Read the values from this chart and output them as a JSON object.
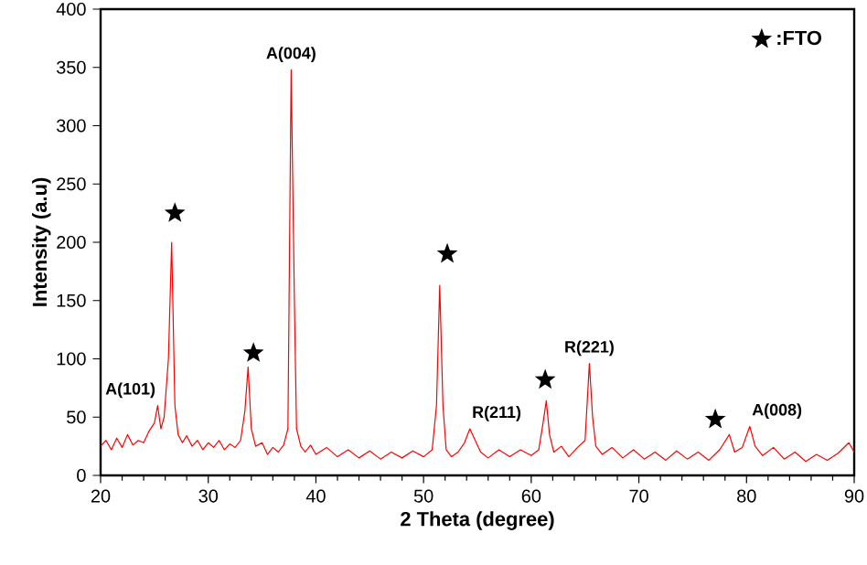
{
  "chart_data": {
    "type": "line",
    "xlabel": "2 Theta (degree)",
    "ylabel": "Intensity (a.u)",
    "xlim": [
      20,
      90
    ],
    "xticks": [
      20,
      30,
      40,
      50,
      60,
      70,
      80,
      90
    ],
    "ylim": [
      0,
      400
    ],
    "yticks": [
      0,
      50,
      100,
      150,
      200,
      250,
      300,
      350,
      400
    ],
    "legend": "top right",
    "grid": false,
    "series": [
      {
        "color": "#ff0000",
        "marker": "none",
        "x": [
          20,
          20.5,
          21,
          21.5,
          22,
          22.5,
          23,
          23.5,
          24,
          24.5,
          25,
          25.3,
          25.6,
          25.9,
          26.3,
          26.6,
          26.9,
          27.2,
          27.6,
          28,
          28.5,
          29,
          29.5,
          30,
          30.5,
          31,
          31.5,
          32,
          32.5,
          33,
          33.4,
          33.7,
          34,
          34.4,
          35,
          35.5,
          36,
          36.5,
          37,
          37.4,
          37.7,
          38,
          38.2,
          38.6,
          39,
          39.5,
          40,
          41,
          42,
          43,
          44,
          45,
          46,
          47,
          48,
          49,
          50,
          50.8,
          51.2,
          51.5,
          51.8,
          52.1,
          52.6,
          53.2,
          53.8,
          54.3,
          54.8,
          55.3,
          56,
          57,
          58,
          59,
          60,
          60.7,
          61.1,
          61.4,
          61.7,
          62.1,
          62.8,
          63.5,
          64.3,
          65,
          65.4,
          65.7,
          66,
          66.6,
          67.5,
          68.5,
          69.5,
          70.5,
          71.5,
          72.5,
          73.5,
          74.5,
          75.5,
          76.5,
          77.5,
          78.4,
          78.9,
          79.6,
          80.3,
          80.8,
          81.5,
          82.5,
          83.5,
          84.5,
          85.5,
          86.5,
          87.5,
          88.5,
          89.5,
          90
        ],
        "values": [
          25,
          30,
          22,
          32,
          24,
          35,
          26,
          30,
          28,
          38,
          45,
          60,
          40,
          50,
          100,
          200,
          60,
          35,
          28,
          34,
          25,
          30,
          22,
          28,
          24,
          30,
          22,
          27,
          24,
          30,
          55,
          93,
          40,
          25,
          28,
          18,
          24,
          20,
          26,
          40,
          348,
          150,
          40,
          25,
          20,
          26,
          18,
          24,
          16,
          22,
          15,
          21,
          14,
          20,
          15,
          21,
          16,
          22,
          60,
          163,
          60,
          22,
          16,
          20,
          28,
          40,
          30,
          20,
          15,
          22,
          16,
          22,
          17,
          22,
          45,
          64,
          35,
          20,
          25,
          16,
          24,
          30,
          96,
          50,
          25,
          18,
          24,
          15,
          22,
          14,
          20,
          13,
          21,
          14,
          20,
          13,
          22,
          35,
          20,
          24,
          42,
          25,
          17,
          24,
          14,
          20,
          12,
          18,
          13,
          19,
          28,
          20
        ]
      },
      {
        "type": "scatter",
        "name": ":FTO",
        "color": "#000000",
        "marker": "star",
        "x": [
          26.9,
          34.2,
          52.2,
          61.3,
          77.1
        ],
        "values": [
          225,
          105,
          190,
          82,
          48
        ]
      }
    ],
    "annotations": [
      {
        "text": "A(101)",
        "x": 25.3,
        "y": 60
      },
      {
        "text": "A(004)",
        "x": 37.7,
        "y": 348
      },
      {
        "text": "R(211)",
        "x": 54.3,
        "y": 40
      },
      {
        "text": "R(221)",
        "x": 65.4,
        "y": 96
      },
      {
        "text": "A(008)",
        "x": 80.3,
        "y": 42
      }
    ]
  }
}
